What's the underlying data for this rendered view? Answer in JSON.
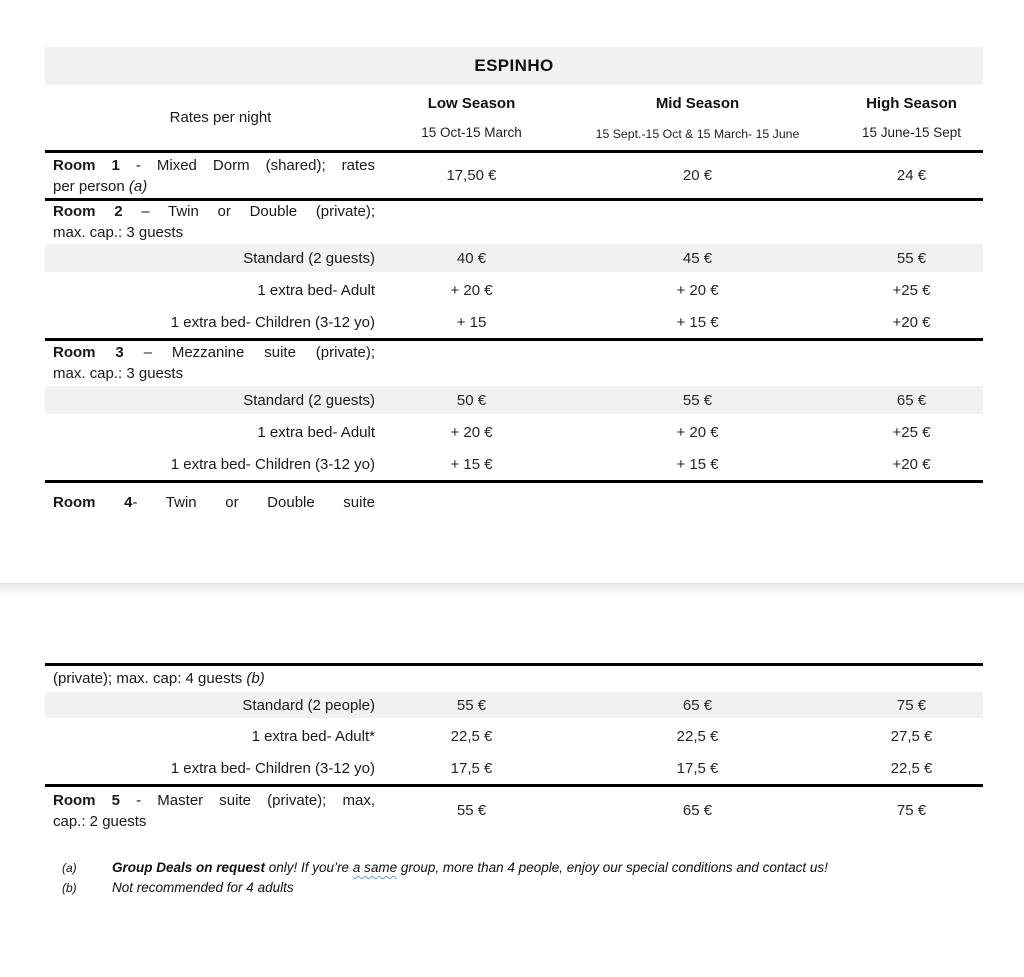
{
  "title": "ESPINHO",
  "colors": {
    "band_gray": "#f1f1f1",
    "rule_black": "#000000",
    "squiggle_blue": "#6a9fd8"
  },
  "header": {
    "rates_label": "Rates per night",
    "seasons": [
      {
        "name": "Low Season",
        "dates": "15 Oct-15 March"
      },
      {
        "name": "Mid Season",
        "dates": "15 Sept.-15 Oct & 15 March- 15 June"
      },
      {
        "name": "High Season",
        "dates": "15 June-15 Sept"
      }
    ]
  },
  "rows": {
    "room1": {
      "line1_bold": "Room 1",
      "line1_rest": " - Mixed Dorm (shared); rates",
      "line2": "per person ",
      "line2_italic": "(a)",
      "values": [
        "17,50 €",
        "20 €",
        "24 €"
      ]
    },
    "room2": {
      "line1_bold": "Room 2",
      "line1_rest": " – Twin or Double (private);",
      "line2": "max. cap.: 3 guests"
    },
    "room2_standard": {
      "label": "Standard (2 guests)",
      "values": [
        "40 €",
        "45 €",
        "55 €"
      ]
    },
    "room2_adult": {
      "label": "1 extra bed- Adult",
      "values": [
        "+ 20 €",
        "+ 20 €",
        "+25 €"
      ]
    },
    "room2_children": {
      "label": "1 extra bed- Children (3-12 yo)",
      "values": [
        "+ 15",
        "+ 15 €",
        "+20 €"
      ]
    },
    "room3": {
      "line1_bold": "Room 3",
      "line1_rest": " – Mezzanine suite (private);",
      "line2": "max. cap.: 3 guests"
    },
    "room3_standard": {
      "label": "Standard (2 guests)",
      "values": [
        "50 €",
        "55 €",
        "65 €"
      ]
    },
    "room3_adult": {
      "label": "1 extra bed- Adult",
      "values": [
        "+ 20 €",
        "+ 20 €",
        "+25 €"
      ]
    },
    "room3_children": {
      "label": "1 extra bed- Children (3-12 yo)",
      "values": [
        "+ 15 €",
        "+ 15 €",
        "+20 €"
      ]
    },
    "room4": {
      "line1_bold": "Room 4",
      "line1_rest": "- Twin or Double suite"
    },
    "room4_cont": {
      "line1": "(private); max. cap: 4 guests ",
      "line1_italic": "(b)"
    },
    "room4_standard": {
      "label": "Standard (2 people)",
      "values": [
        "55 €",
        "65 €",
        "75 €"
      ]
    },
    "room4_adult": {
      "label": "1 extra bed- Adult*",
      "values": [
        "22,5 €",
        "22,5 €",
        "27,5 €"
      ]
    },
    "room4_children": {
      "label": "1 extra bed- Children (3-12 yo)",
      "values": [
        "17,5 €",
        "17,5 €",
        "22,5 €"
      ]
    },
    "room5": {
      "line1_bold": "Room 5",
      "line1_rest": " - Master suite (private); max,",
      "line2": "cap.: 2 guests",
      "values": [
        "55 €",
        "65 €",
        "75 €"
      ]
    }
  },
  "footnotes": {
    "a": {
      "marker": "(a)",
      "bold": "Group Deals on request",
      "text_before": " only! If you’re ",
      "misspelled": "a same",
      "text_after": " group, more than 4 people, enjoy our special conditions and contact us!"
    },
    "b": {
      "marker": "(b)",
      "text": "Not recommended for 4 adults"
    }
  }
}
